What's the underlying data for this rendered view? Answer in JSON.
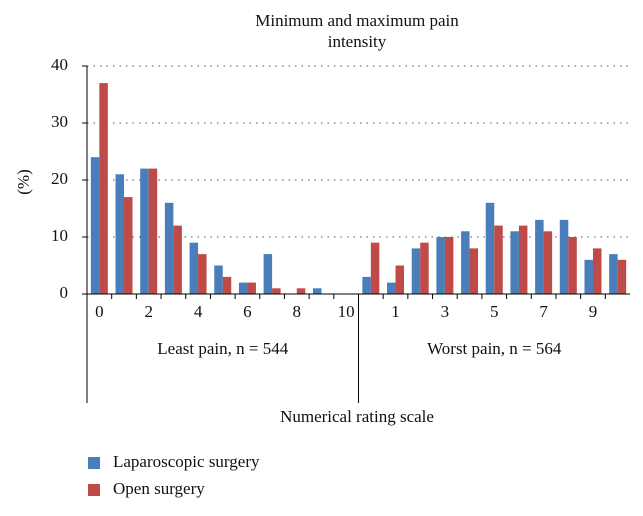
{
  "chart_data": {
    "type": "bar",
    "title": "Minimum and maximum pain intensity",
    "y_label": "(%)",
    "x_label": "Numerical rating scale",
    "groups": [
      {
        "label": "Least pain, n = 544",
        "size": 11
      },
      {
        "label": "Worst pain, n = 564",
        "size": 11
      }
    ],
    "categories": [
      "0",
      null,
      "2",
      null,
      "4",
      null,
      "6",
      null,
      "8",
      null,
      "10",
      null,
      "1",
      null,
      "3",
      null,
      "5",
      null,
      "7",
      null,
      "9",
      null
    ],
    "series": [
      {
        "name": "Laparoscopic surgery",
        "color": "#4a7ebb",
        "values": [
          24,
          21,
          22,
          16,
          9,
          5,
          2,
          7,
          0,
          1,
          0,
          3,
          2,
          8,
          10,
          11,
          16,
          11,
          13,
          13,
          6,
          7
        ]
      },
      {
        "name": "Open surgery",
        "color": "#be4b48",
        "values": [
          37,
          17,
          22,
          12,
          7,
          3,
          2,
          1,
          1,
          0,
          0,
          9,
          5,
          9,
          10,
          8,
          12,
          12,
          11,
          10,
          8,
          6
        ]
      }
    ],
    "ylim": [
      0,
      40
    ],
    "yticks": [
      0,
      10,
      20,
      30,
      40
    ],
    "grid": true
  }
}
